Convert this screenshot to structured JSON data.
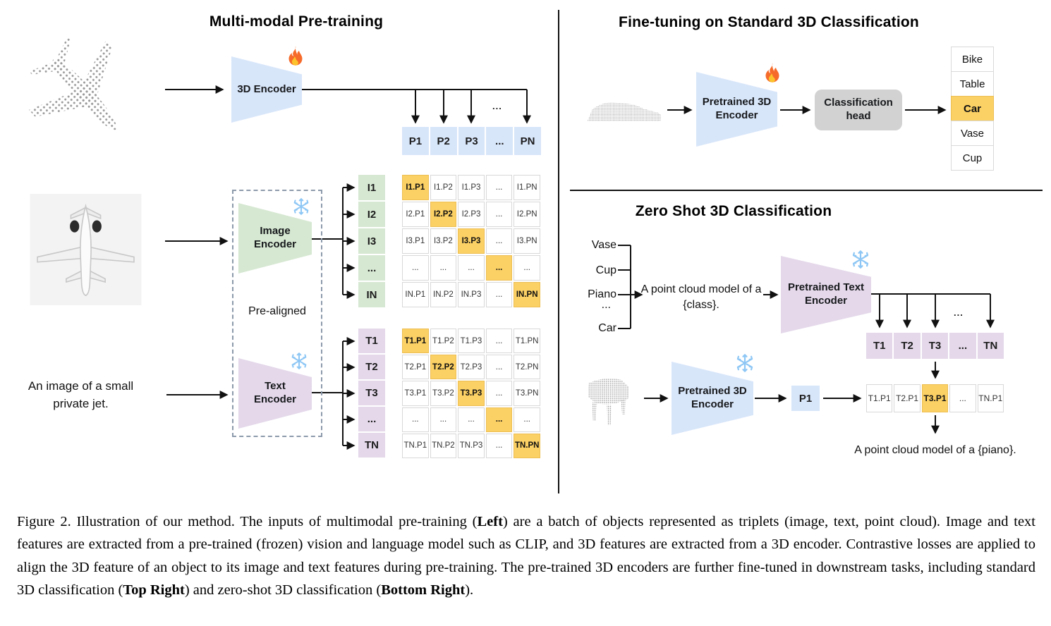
{
  "figure": {
    "left_panel": {
      "title": "Multi-modal Pre-training",
      "encoder_3d_label": "3D Encoder",
      "p_row": [
        "P1",
        "P2",
        "P3",
        "...",
        "PN"
      ],
      "image_encoder_label": "Image Encoder",
      "text_encoder_label": "Text Encoder",
      "pre_aligned_label": "Pre-aligned",
      "text_input": "An image of a small private jet.",
      "i_labels": [
        "I1",
        "I2",
        "I3",
        "...",
        "IN"
      ],
      "i_matrix": [
        [
          "I1.P1",
          "I1.P2",
          "I1.P3",
          "...",
          "I1.PN"
        ],
        [
          "I2.P1",
          "I2.P2",
          "I2.P3",
          "...",
          "I2.PN"
        ],
        [
          "I3.P1",
          "I3.P2",
          "I3.P3",
          "...",
          "I3.PN"
        ],
        [
          "...",
          "...",
          "...",
          "...",
          "..."
        ],
        [
          "IN.P1",
          "IN.P2",
          "IN.P3",
          "...",
          "IN.PN"
        ]
      ],
      "t_labels": [
        "T1",
        "T2",
        "T3",
        "...",
        "TN"
      ],
      "t_matrix": [
        [
          "T1.P1",
          "T1.P2",
          "T1.P3",
          "...",
          "T1.PN"
        ],
        [
          "T2.P1",
          "T2.P2",
          "T2.P3",
          "...",
          "T2.PN"
        ],
        [
          "T3.P1",
          "T3.P2",
          "T3.P3",
          "...",
          "T3.PN"
        ],
        [
          "...",
          "...",
          "...",
          "...",
          "..."
        ],
        [
          "TN.P1",
          "TN.P2",
          "TN.P3",
          "...",
          "TN.PN"
        ]
      ],
      "ellipsis": "..."
    },
    "finetune_panel": {
      "title": "Fine-tuning on Standard 3D Classification",
      "encoder_label": "Pretrained 3D Encoder",
      "head_label": "Classification head",
      "classes": [
        "Bike",
        "Table",
        "Car",
        "Vase",
        "Cup"
      ],
      "predicted_class": "Car"
    },
    "zeroshot_panel": {
      "title": "Zero Shot 3D Classification",
      "candidate_classes": [
        "Vase",
        "Cup",
        "Piano",
        "...",
        "Car"
      ],
      "prompt_template": "A point cloud model of a {class}.",
      "text_encoder_label": "Pretrained Text Encoder",
      "encoder_label": "Pretrained 3D Encoder",
      "t_row": [
        "T1",
        "T2",
        "T3",
        "...",
        "TN"
      ],
      "p_cell": "P1",
      "similarity_row": [
        "T1.P1",
        "T2.P1",
        "T3.P1",
        "...",
        "TN.P1"
      ],
      "predicted_similarity": "T3.P1",
      "result_text": "A point cloud model of a {piano}.",
      "ellipsis": "..."
    }
  },
  "icons": {
    "trainable": "fire-icon",
    "frozen": "snowflake-icon"
  },
  "colors": {
    "encoder_blue": "#d8e6fa",
    "image_green": "#d6e8d2",
    "text_purple": "#e4d8ea",
    "highlight_orange": "#fbd064",
    "head_gray": "#d2d2d2"
  },
  "caption": {
    "segments": [
      {
        "text": "Figure 2. Illustration of our method. The inputs of multimodal pre-training (",
        "bold": false
      },
      {
        "text": "Left",
        "bold": true
      },
      {
        "text": ") are a batch of objects represented as triplets (image, text, point cloud). Image and text features are extracted from a pre-trained (frozen) vision and language model such as CLIP, and 3D features are extracted from a 3D encoder. Contrastive losses are applied to align the 3D feature of an object to its image and text features during pre-training. The pre-trained 3D encoders are further fine-tuned in downstream tasks, including standard 3D classification (",
        "bold": false
      },
      {
        "text": "Top Right",
        "bold": true
      },
      {
        "text": ") and zero-shot 3D classification (",
        "bold": false
      },
      {
        "text": "Bottom Right",
        "bold": true
      },
      {
        "text": ").",
        "bold": false
      }
    ]
  }
}
